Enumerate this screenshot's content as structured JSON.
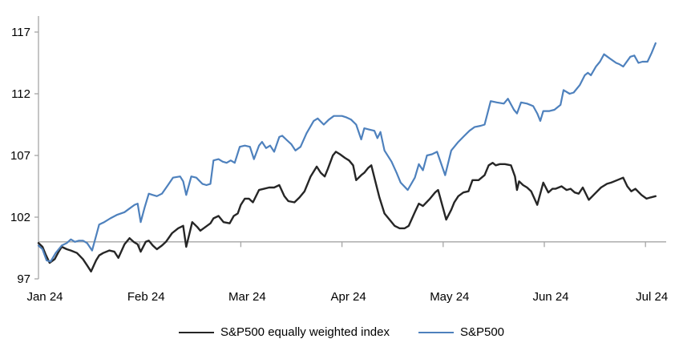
{
  "chart_data": {
    "type": "line",
    "title": "",
    "xlabel": "",
    "ylabel": "",
    "x_tick_labels": [
      "Jan 24",
      "Feb 24",
      "Mar 24",
      "Apr 24",
      "May 24",
      "Jun 24",
      "Jul 24"
    ],
    "x_tick_positions": [
      0,
      1,
      2,
      3,
      4,
      5,
      6
    ],
    "xlim": [
      0,
      6.2
    ],
    "ylim": [
      97,
      118.3
    ],
    "y_ticks": [
      97,
      102,
      107,
      112,
      117
    ],
    "axis_cross_value": 100,
    "grid": false,
    "legend_position": "bottom",
    "axis_color": "#A6A6A6",
    "series": [
      {
        "name": "S&P500 equally weighted index",
        "color": "#262626",
        "stroke_width": 2.4,
        "points": [
          [
            0,
            99.9
          ],
          [
            0.04,
            99.6
          ],
          [
            0.07,
            99
          ],
          [
            0.11,
            98.3
          ],
          [
            0.16,
            98.6
          ],
          [
            0.2,
            99.2
          ],
          [
            0.23,
            99.6
          ],
          [
            0.28,
            99.4
          ],
          [
            0.32,
            99.3
          ],
          [
            0.38,
            99.1
          ],
          [
            0.44,
            98.6
          ],
          [
            0.48,
            98.1
          ],
          [
            0.52,
            97.6
          ],
          [
            0.57,
            98.5
          ],
          [
            0.6,
            98.9
          ],
          [
            0.64,
            99.1
          ],
          [
            0.7,
            99.3
          ],
          [
            0.75,
            99.2
          ],
          [
            0.79,
            98.7
          ],
          [
            0.85,
            99.8
          ],
          [
            0.9,
            100.3
          ],
          [
            0.94,
            100
          ],
          [
            0.98,
            99.8
          ],
          [
            1.01,
            99.2
          ],
          [
            1.06,
            100
          ],
          [
            1.09,
            100.1
          ],
          [
            1.13,
            99.7
          ],
          [
            1.17,
            99.4
          ],
          [
            1.22,
            99.7
          ],
          [
            1.26,
            100
          ],
          [
            1.32,
            100.7
          ],
          [
            1.38,
            101.1
          ],
          [
            1.43,
            101.3
          ],
          [
            1.46,
            99.6
          ],
          [
            1.52,
            101.6
          ],
          [
            1.57,
            101.2
          ],
          [
            1.6,
            100.9
          ],
          [
            1.65,
            101.2
          ],
          [
            1.7,
            101.5
          ],
          [
            1.73,
            101.9
          ],
          [
            1.78,
            102.1
          ],
          [
            1.83,
            101.6
          ],
          [
            1.89,
            101.5
          ],
          [
            1.93,
            102.1
          ],
          [
            1.97,
            102.3
          ],
          [
            2,
            103
          ],
          [
            2.04,
            103.5
          ],
          [
            2.08,
            103.5
          ],
          [
            2.12,
            103.2
          ],
          [
            2.18,
            104.2
          ],
          [
            2.23,
            104.3
          ],
          [
            2.28,
            104.4
          ],
          [
            2.33,
            104.4
          ],
          [
            2.38,
            104.6
          ],
          [
            2.43,
            103.7
          ],
          [
            2.47,
            103.3
          ],
          [
            2.53,
            103.2
          ],
          [
            2.58,
            103.6
          ],
          [
            2.63,
            104.1
          ],
          [
            2.69,
            105.3
          ],
          [
            2.75,
            106.1
          ],
          [
            2.79,
            105.6
          ],
          [
            2.83,
            105.3
          ],
          [
            2.86,
            105.9
          ],
          [
            2.91,
            107
          ],
          [
            2.94,
            107.3
          ],
          [
            2.98,
            107.1
          ],
          [
            3.03,
            106.8
          ],
          [
            3.07,
            106.6
          ],
          [
            3.11,
            106.2
          ],
          [
            3.14,
            105
          ],
          [
            3.19,
            105.4
          ],
          [
            3.22,
            105.6
          ],
          [
            3.26,
            106
          ],
          [
            3.29,
            106.2
          ],
          [
            3.33,
            104.9
          ],
          [
            3.37,
            103.6
          ],
          [
            3.42,
            102.3
          ],
          [
            3.48,
            101.7
          ],
          [
            3.52,
            101.3
          ],
          [
            3.57,
            101.1
          ],
          [
            3.62,
            101.1
          ],
          [
            3.66,
            101.3
          ],
          [
            3.72,
            102.4
          ],
          [
            3.76,
            103.1
          ],
          [
            3.8,
            102.9
          ],
          [
            3.87,
            103.5
          ],
          [
            3.92,
            104
          ],
          [
            3.95,
            104.2
          ],
          [
            4.03,
            101.8
          ],
          [
            4.08,
            102.6
          ],
          [
            4.11,
            103.2
          ],
          [
            4.15,
            103.7
          ],
          [
            4.2,
            104
          ],
          [
            4.25,
            104.1
          ],
          [
            4.29,
            105
          ],
          [
            4.35,
            105
          ],
          [
            4.41,
            105.4
          ],
          [
            4.45,
            106.2
          ],
          [
            4.49,
            106.4
          ],
          [
            4.52,
            106.2
          ],
          [
            4.56,
            106.3
          ],
          [
            4.61,
            106.3
          ],
          [
            4.67,
            106.2
          ],
          [
            4.71,
            105.3
          ],
          [
            4.73,
            104.2
          ],
          [
            4.75,
            104.9
          ],
          [
            4.79,
            104.6
          ],
          [
            4.83,
            104.4
          ],
          [
            4.87,
            104.1
          ],
          [
            4.93,
            103
          ],
          [
            4.99,
            104.8
          ],
          [
            5.04,
            104
          ],
          [
            5.08,
            104.3
          ],
          [
            5.11,
            104.3
          ],
          [
            5.17,
            104.5
          ],
          [
            5.22,
            104.2
          ],
          [
            5.26,
            104.3
          ],
          [
            5.3,
            104
          ],
          [
            5.34,
            103.9
          ],
          [
            5.38,
            104.4
          ],
          [
            5.44,
            103.4
          ],
          [
            5.5,
            103.9
          ],
          [
            5.56,
            104.4
          ],
          [
            5.62,
            104.7
          ],
          [
            5.66,
            104.8
          ],
          [
            5.72,
            105
          ],
          [
            5.78,
            105.2
          ],
          [
            5.82,
            104.5
          ],
          [
            5.86,
            104.1
          ],
          [
            5.9,
            104.3
          ],
          [
            5.96,
            103.8
          ],
          [
            6.01,
            103.5
          ],
          [
            6.05,
            103.6
          ],
          [
            6.1,
            103.7
          ]
        ]
      },
      {
        "name": "S&P500",
        "color": "#4E81BD",
        "stroke_width": 2.2,
        "points": [
          [
            0,
            99.7
          ],
          [
            0.04,
            99.4
          ],
          [
            0.08,
            98.5
          ],
          [
            0.12,
            98.4
          ],
          [
            0.17,
            99.1
          ],
          [
            0.23,
            99.7
          ],
          [
            0.28,
            99.9
          ],
          [
            0.32,
            100.2
          ],
          [
            0.36,
            100
          ],
          [
            0.4,
            100.1
          ],
          [
            0.44,
            100.1
          ],
          [
            0.48,
            99.9
          ],
          [
            0.53,
            99.3
          ],
          [
            0.58,
            100.8
          ],
          [
            0.6,
            101.4
          ],
          [
            0.65,
            101.6
          ],
          [
            0.71,
            101.9
          ],
          [
            0.78,
            102.2
          ],
          [
            0.85,
            102.4
          ],
          [
            0.9,
            102.7
          ],
          [
            0.95,
            103
          ],
          [
            0.98,
            103.1
          ],
          [
            1.01,
            101.6
          ],
          [
            1.05,
            102.8
          ],
          [
            1.09,
            103.9
          ],
          [
            1.13,
            103.8
          ],
          [
            1.17,
            103.7
          ],
          [
            1.22,
            103.9
          ],
          [
            1.28,
            104.6
          ],
          [
            1.33,
            105.2
          ],
          [
            1.4,
            105.3
          ],
          [
            1.43,
            104.9
          ],
          [
            1.46,
            103.8
          ],
          [
            1.51,
            105.3
          ],
          [
            1.56,
            105.2
          ],
          [
            1.62,
            104.7
          ],
          [
            1.66,
            104.6
          ],
          [
            1.7,
            104.7
          ],
          [
            1.73,
            106.6
          ],
          [
            1.78,
            106.7
          ],
          [
            1.82,
            106.5
          ],
          [
            1.86,
            106.4
          ],
          [
            1.9,
            106.6
          ],
          [
            1.94,
            106.4
          ],
          [
            1.99,
            107.7
          ],
          [
            2.04,
            107.8
          ],
          [
            2.09,
            107.7
          ],
          [
            2.13,
            106.7
          ],
          [
            2.18,
            107.8
          ],
          [
            2.21,
            108.1
          ],
          [
            2.25,
            107.6
          ],
          [
            2.29,
            107.8
          ],
          [
            2.33,
            107.3
          ],
          [
            2.38,
            108.5
          ],
          [
            2.41,
            108.6
          ],
          [
            2.46,
            108.2
          ],
          [
            2.5,
            107.9
          ],
          [
            2.54,
            107.4
          ],
          [
            2.59,
            107.7
          ],
          [
            2.65,
            108.8
          ],
          [
            2.72,
            109.8
          ],
          [
            2.76,
            110
          ],
          [
            2.82,
            109.5
          ],
          [
            2.87,
            109.9
          ],
          [
            2.92,
            110.2
          ],
          [
            3,
            110.2
          ],
          [
            3.04,
            110.1
          ],
          [
            3.09,
            109.9
          ],
          [
            3.14,
            109.5
          ],
          [
            3.19,
            108.3
          ],
          [
            3.22,
            109.2
          ],
          [
            3.27,
            109.1
          ],
          [
            3.32,
            109
          ],
          [
            3.35,
            108.4
          ],
          [
            3.38,
            108.9
          ],
          [
            3.42,
            107.4
          ],
          [
            3.49,
            106.5
          ],
          [
            3.54,
            105.6
          ],
          [
            3.58,
            104.8
          ],
          [
            3.65,
            104.2
          ],
          [
            3.72,
            105.2
          ],
          [
            3.76,
            106.3
          ],
          [
            3.8,
            105.8
          ],
          [
            3.84,
            107
          ],
          [
            3.89,
            107.1
          ],
          [
            3.94,
            107.3
          ],
          [
            4.02,
            105.4
          ],
          [
            4.08,
            107.4
          ],
          [
            4.15,
            108.1
          ],
          [
            4.21,
            108.6
          ],
          [
            4.26,
            109
          ],
          [
            4.31,
            109.3
          ],
          [
            4.37,
            109.4
          ],
          [
            4.41,
            109.5
          ],
          [
            4.47,
            111.4
          ],
          [
            4.53,
            111.3
          ],
          [
            4.6,
            111.2
          ],
          [
            4.64,
            111.6
          ],
          [
            4.7,
            110.7
          ],
          [
            4.73,
            110.4
          ],
          [
            4.77,
            111.3
          ],
          [
            4.83,
            111.2
          ],
          [
            4.89,
            111
          ],
          [
            4.93,
            110.4
          ],
          [
            4.96,
            109.8
          ],
          [
            4.99,
            110.6
          ],
          [
            5.05,
            110.6
          ],
          [
            5.1,
            110.7
          ],
          [
            5.16,
            111.1
          ],
          [
            5.19,
            112.3
          ],
          [
            5.25,
            112
          ],
          [
            5.29,
            112.1
          ],
          [
            5.35,
            112.7
          ],
          [
            5.4,
            113.5
          ],
          [
            5.43,
            113.7
          ],
          [
            5.46,
            113.5
          ],
          [
            5.51,
            114.2
          ],
          [
            5.55,
            114.6
          ],
          [
            5.59,
            115.2
          ],
          [
            5.64,
            114.9
          ],
          [
            5.71,
            114.5
          ],
          [
            5.74,
            114.4
          ],
          [
            5.78,
            114.2
          ],
          [
            5.85,
            115
          ],
          [
            5.89,
            115.1
          ],
          [
            5.93,
            114.5
          ],
          [
            5.97,
            114.6
          ],
          [
            6.02,
            114.6
          ],
          [
            6.06,
            115.3
          ],
          [
            6.1,
            116.1
          ]
        ]
      }
    ]
  },
  "legend": {
    "items": [
      {
        "label": "S&P500 equally weighted index",
        "color": "#262626"
      },
      {
        "label": "S&P500",
        "color": "#4E81BD"
      }
    ]
  }
}
